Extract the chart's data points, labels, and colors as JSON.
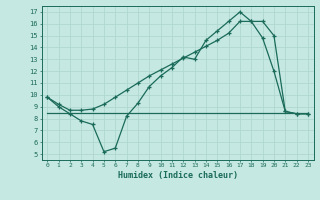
{
  "xlabel": "Humidex (Indice chaleur)",
  "xlim": [
    -0.5,
    23.5
  ],
  "ylim": [
    4.5,
    17.5
  ],
  "xticks": [
    0,
    1,
    2,
    3,
    4,
    5,
    6,
    7,
    8,
    9,
    10,
    11,
    12,
    13,
    14,
    15,
    16,
    17,
    18,
    19,
    20,
    21,
    22,
    23
  ],
  "yticks": [
    5,
    6,
    7,
    8,
    9,
    10,
    11,
    12,
    13,
    14,
    15,
    16,
    17
  ],
  "bg_color": "#c6e8e2",
  "line_color": "#1a6b5a",
  "grid_color": "#b0d8d0",
  "line1_x": [
    0,
    1,
    2,
    3,
    4,
    5,
    6,
    7,
    8,
    9,
    10,
    11,
    12,
    13,
    14,
    15,
    16,
    17,
    18,
    19,
    20,
    21,
    22,
    23
  ],
  "line1_y": [
    8.5,
    8.5,
    8.5,
    8.5,
    8.5,
    8.5,
    8.5,
    8.5,
    8.5,
    8.5,
    8.5,
    8.5,
    8.5,
    8.5,
    8.5,
    8.5,
    8.5,
    8.5,
    8.5,
    8.5,
    8.5,
    8.5,
    8.5,
    8.5
  ],
  "line2_x": [
    0,
    1,
    2,
    3,
    4,
    5,
    6,
    7,
    8,
    9,
    10,
    11,
    12,
    13,
    14,
    15,
    16,
    17,
    18,
    19,
    20,
    21,
    22,
    23
  ],
  "line2_y": [
    9.8,
    9.0,
    8.4,
    7.8,
    7.5,
    5.2,
    5.5,
    8.2,
    9.3,
    10.7,
    11.6,
    12.3,
    13.2,
    13.0,
    14.6,
    15.4,
    16.2,
    17.0,
    16.2,
    14.8,
    12.0,
    8.6,
    8.4,
    8.4
  ],
  "line3_x": [
    0,
    1,
    2,
    3,
    4,
    5,
    6,
    7,
    8,
    9,
    10,
    11,
    12,
    13,
    14,
    15,
    16,
    17,
    18,
    19,
    20,
    21,
    22,
    23
  ],
  "line3_y": [
    9.8,
    9.2,
    8.7,
    8.7,
    8.8,
    9.2,
    9.8,
    10.4,
    11.0,
    11.6,
    12.1,
    12.6,
    13.1,
    13.6,
    14.1,
    14.6,
    15.2,
    16.2,
    16.2,
    16.2,
    15.0,
    8.6,
    8.4,
    8.4
  ]
}
